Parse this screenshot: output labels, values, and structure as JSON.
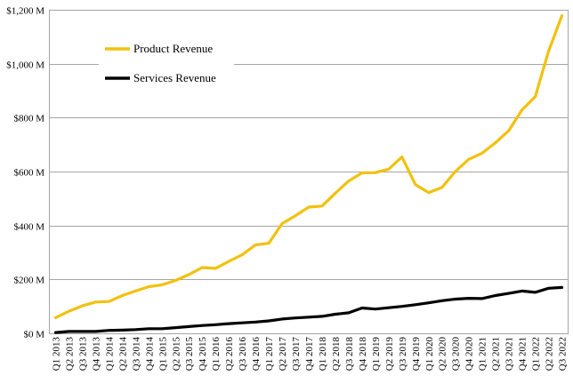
{
  "chart_data": {
    "type": "line",
    "title": "",
    "xlabel": "",
    "ylabel": "",
    "ylim": [
      0,
      1200
    ],
    "y_ticks": [
      {
        "value": 0,
        "label": "$0 M"
      },
      {
        "value": 200,
        "label": "$200 M"
      },
      {
        "value": 400,
        "label": "$400 M"
      },
      {
        "value": 600,
        "label": "$600 M"
      },
      {
        "value": 800,
        "label": "$800 M"
      },
      {
        "value": 1000,
        "label": "$1,000 M"
      },
      {
        "value": 1200,
        "label": "$1,200 M"
      }
    ],
    "grid": "horizontal",
    "legend_position": "top-left",
    "categories": [
      "Q1 2013",
      "Q2 2013",
      "Q3 2013",
      "Q4 2013",
      "Q1 2014",
      "Q2 2014",
      "Q3 2014",
      "Q4 2014",
      "Q1 2015",
      "Q2 2015",
      "Q3 2015",
      "Q4 2015",
      "Q1 2016",
      "Q2 2016",
      "Q3 2016",
      "Q4 2016",
      "Q1 2017",
      "Q2 2017",
      "Q3 2017",
      "Q4 2017",
      "Q1 2018",
      "Q2 2018",
      "Q3 2018",
      "Q4 2018",
      "Q1 2019",
      "Q2 2019",
      "Q3 2019",
      "Q4 2019",
      "Q1 2020",
      "Q2 2020",
      "Q3 2020",
      "Q4 2020",
      "Q1 2021",
      "Q2 2021",
      "Q3 2021",
      "Q4 2021",
      "Q1 2022",
      "Q2 2022",
      "Q3 2022"
    ],
    "series": [
      {
        "name": "Product Revenue",
        "color": "#F2C10E",
        "values": [
          58,
          82,
          102,
          116,
          118,
          140,
          157,
          173,
          180,
          196,
          218,
          244,
          241,
          267,
          291,
          328,
          334,
          407,
          436,
          468,
          472,
          520,
          565,
          595,
          596,
          609,
          654,
          552,
          522,
          541,
          600,
          645,
          668,
          706,
          751,
          828,
          878,
          1046,
          1178
        ]
      },
      {
        "name": "Services Revenue",
        "color": "#000000",
        "values": [
          3,
          7,
          7,
          7,
          11,
          12,
          14,
          17,
          17,
          21,
          25,
          29,
          32,
          36,
          39,
          42,
          46,
          53,
          57,
          60,
          63,
          71,
          76,
          94,
          90,
          95,
          100,
          106,
          113,
          121,
          127,
          130,
          129,
          140,
          148,
          157,
          152,
          167,
          170
        ]
      }
    ]
  }
}
